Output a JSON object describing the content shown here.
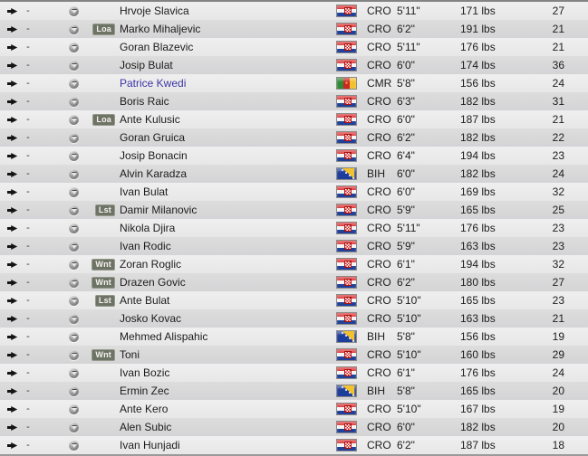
{
  "colors": {
    "link": "#3b35a6",
    "badge_bg": "#6e7465",
    "row_light": "#ebebeb",
    "row_dark": "#d8d8d9",
    "flag_cro_red": "#d92a2a",
    "flag_cro_blue": "#20409a",
    "flag_bih_blue": "#1c3d9b",
    "flag_cmr_green": "#2f8b33"
  },
  "table": {
    "columns": [
      "move-status",
      "info",
      "actions",
      "status-badge",
      "name",
      "flag",
      "nation",
      "height",
      "weight",
      "age"
    ],
    "dash": "-",
    "rows": [
      {
        "name": "Hrvoje Slavica",
        "badge": "",
        "flag": "cro",
        "nation": "CRO",
        "height": "5'11\"",
        "weight": "171 lbs",
        "age": "27",
        "link": false
      },
      {
        "name": "Marko Mihaljevic",
        "badge": "Loa",
        "flag": "cro",
        "nation": "CRO",
        "height": "6'2\"",
        "weight": "191 lbs",
        "age": "21",
        "link": false
      },
      {
        "name": "Goran Blazevic",
        "badge": "",
        "flag": "cro",
        "nation": "CRO",
        "height": "5'11\"",
        "weight": "176 lbs",
        "age": "21",
        "link": false
      },
      {
        "name": "Josip Bulat",
        "badge": "",
        "flag": "cro",
        "nation": "CRO",
        "height": "6'0\"",
        "weight": "174 lbs",
        "age": "36",
        "link": false
      },
      {
        "name": "Patrice Kwedi",
        "badge": "",
        "flag": "cmr",
        "nation": "CMR",
        "height": "5'8\"",
        "weight": "156 lbs",
        "age": "24",
        "link": true
      },
      {
        "name": "Boris Raic",
        "badge": "",
        "flag": "cro",
        "nation": "CRO",
        "height": "6'3\"",
        "weight": "182 lbs",
        "age": "31",
        "link": false
      },
      {
        "name": "Ante Kulusic",
        "badge": "Loa",
        "flag": "cro",
        "nation": "CRO",
        "height": "6'0\"",
        "weight": "187 lbs",
        "age": "21",
        "link": false
      },
      {
        "name": "Goran Gruica",
        "badge": "",
        "flag": "cro",
        "nation": "CRO",
        "height": "6'2\"",
        "weight": "182 lbs",
        "age": "22",
        "link": false
      },
      {
        "name": "Josip Bonacin",
        "badge": "",
        "flag": "cro",
        "nation": "CRO",
        "height": "6'4\"",
        "weight": "194 lbs",
        "age": "23",
        "link": false
      },
      {
        "name": "Alvin Karadza",
        "badge": "",
        "flag": "bih",
        "nation": "BIH",
        "height": "6'0\"",
        "weight": "182 lbs",
        "age": "24",
        "link": false
      },
      {
        "name": "Ivan Bulat",
        "badge": "",
        "flag": "cro",
        "nation": "CRO",
        "height": "6'0\"",
        "weight": "169 lbs",
        "age": "32",
        "link": false
      },
      {
        "name": "Damir Milanovic",
        "badge": "Lst",
        "flag": "cro",
        "nation": "CRO",
        "height": "5'9\"",
        "weight": "165 lbs",
        "age": "25",
        "link": false
      },
      {
        "name": "Nikola Djira",
        "badge": "",
        "flag": "cro",
        "nation": "CRO",
        "height": "5'11\"",
        "weight": "176 lbs",
        "age": "23",
        "link": false
      },
      {
        "name": "Ivan Rodic",
        "badge": "",
        "flag": "cro",
        "nation": "CRO",
        "height": "5'9\"",
        "weight": "163 lbs",
        "age": "23",
        "link": false
      },
      {
        "name": "Zoran Roglic",
        "badge": "Wnt",
        "flag": "cro",
        "nation": "CRO",
        "height": "6'1\"",
        "weight": "194 lbs",
        "age": "32",
        "link": false
      },
      {
        "name": "Drazen Govic",
        "badge": "Wnt",
        "flag": "cro",
        "nation": "CRO",
        "height": "6'2\"",
        "weight": "180 lbs",
        "age": "27",
        "link": false
      },
      {
        "name": "Ante Bulat",
        "badge": "Lst",
        "flag": "cro",
        "nation": "CRO",
        "height": "5'10\"",
        "weight": "165 lbs",
        "age": "23",
        "link": false
      },
      {
        "name": "Josko Kovac",
        "badge": "",
        "flag": "cro",
        "nation": "CRO",
        "height": "5'10\"",
        "weight": "163 lbs",
        "age": "21",
        "link": false
      },
      {
        "name": "Mehmed Alispahic",
        "badge": "",
        "flag": "bih",
        "nation": "BIH",
        "height": "5'8\"",
        "weight": "156 lbs",
        "age": "19",
        "link": false
      },
      {
        "name": "Toni",
        "badge": "Wnt",
        "flag": "cro",
        "nation": "CRO",
        "height": "5'10\"",
        "weight": "160 lbs",
        "age": "29",
        "link": false
      },
      {
        "name": "Ivan Bozic",
        "badge": "",
        "flag": "cro",
        "nation": "CRO",
        "height": "6'1\"",
        "weight": "176 lbs",
        "age": "24",
        "link": false
      },
      {
        "name": "Ermin Zec",
        "badge": "",
        "flag": "bih",
        "nation": "BIH",
        "height": "5'8\"",
        "weight": "165 lbs",
        "age": "20",
        "link": false
      },
      {
        "name": "Ante Kero",
        "badge": "",
        "flag": "cro",
        "nation": "CRO",
        "height": "5'10\"",
        "weight": "167 lbs",
        "age": "19",
        "link": false
      },
      {
        "name": "Alen Subic",
        "badge": "",
        "flag": "cro",
        "nation": "CRO",
        "height": "6'0\"",
        "weight": "182 lbs",
        "age": "20",
        "link": false
      },
      {
        "name": "Ivan Hunjadi",
        "badge": "",
        "flag": "cro",
        "nation": "CRO",
        "height": "6'2\"",
        "weight": "187 lbs",
        "age": "18",
        "link": false
      }
    ]
  }
}
